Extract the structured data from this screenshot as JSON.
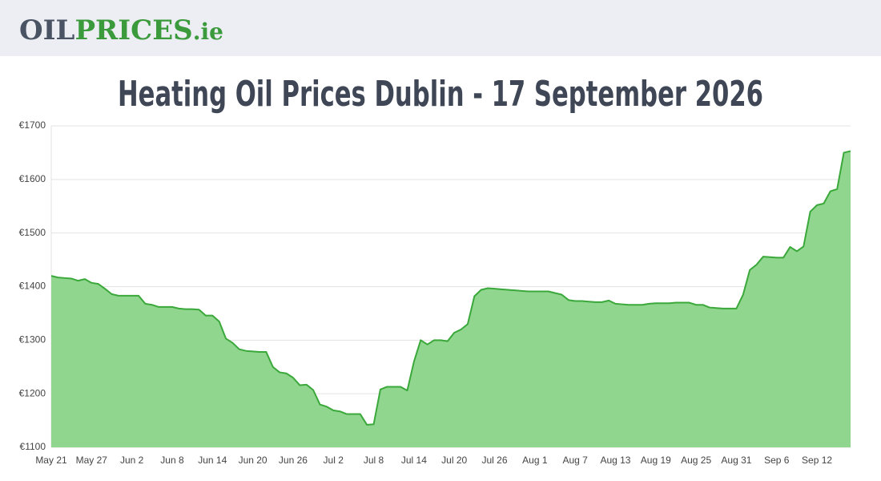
{
  "header": {
    "logo": [
      "OIL",
      "PRICES",
      ".ie"
    ]
  },
  "chart_data": {
    "type": "area",
    "title": "Heating Oil Prices Dublin - 17 September 2026",
    "color": "#3aa83a",
    "fill": "#90d68e",
    "grid": true,
    "categories": [
      "May 21",
      null,
      null,
      null,
      null,
      null,
      "May 27",
      null,
      null,
      null,
      null,
      null,
      "Jun 2",
      null,
      null,
      null,
      null,
      null,
      "Jun 8",
      null,
      null,
      null,
      null,
      null,
      "Jun 14",
      null,
      null,
      null,
      null,
      null,
      "Jun 20",
      null,
      null,
      null,
      null,
      null,
      "Jun 26",
      null,
      null,
      null,
      null,
      null,
      "Jul 2",
      null,
      null,
      null,
      null,
      null,
      "Jul 8",
      null,
      null,
      null,
      null,
      null,
      "Jul 14",
      null,
      null,
      null,
      null,
      null,
      "Jul 20",
      null,
      null,
      null,
      null,
      null,
      "Jul 26",
      null,
      null,
      null,
      null,
      null,
      "Aug 1",
      null,
      null,
      null,
      null,
      null,
      "Aug 7",
      null,
      null,
      null,
      null,
      null,
      "Aug 13",
      null,
      null,
      null,
      null,
      null,
      "Aug 19",
      null,
      null,
      null,
      null,
      null,
      "Aug 25",
      null,
      null,
      null,
      null,
      null,
      "Aug 31",
      null,
      null,
      null,
      null,
      null,
      "Sep 6",
      null,
      null,
      null,
      null,
      null,
      "Sep 12",
      null,
      null,
      null,
      null,
      null
    ],
    "values": [
      1420,
      1417,
      1416,
      1415,
      1411,
      1414,
      1407,
      1405,
      1396,
      1386,
      1383,
      1383,
      1383,
      1383,
      1368,
      1366,
      1362,
      1362,
      1362,
      1359,
      1358,
      1358,
      1357,
      1346,
      1346,
      1335,
      1303,
      1295,
      1283,
      1280,
      1279,
      1278,
      1278,
      1250,
      1240,
      1238,
      1230,
      1216,
      1217,
      1207,
      1180,
      1176,
      1169,
      1167,
      1162,
      1162,
      1162,
      1142,
      1143,
      1208,
      1213,
      1213,
      1213,
      1206,
      1260,
      1300,
      1292,
      1300,
      1300,
      1298,
      1314,
      1320,
      1330,
      1382,
      1394,
      1397,
      1396,
      1395,
      1394,
      1393,
      1392,
      1391,
      1391,
      1391,
      1391,
      1388,
      1385,
      1375,
      1373,
      1373,
      1372,
      1371,
      1371,
      1374,
      1368,
      1367,
      1366,
      1366,
      1366,
      1368,
      1369,
      1369,
      1369,
      1370,
      1370,
      1370,
      1366,
      1366,
      1361,
      1360,
      1359,
      1359,
      1359,
      1385,
      1431,
      1441,
      1456,
      1455,
      1454,
      1454,
      1474,
      1466,
      1475,
      1540,
      1552,
      1555,
      1578,
      1582,
      1650,
      1653
    ],
    "ylim": [
      1100,
      1700
    ],
    "yticks": [
      {
        "value": 1100,
        "label": "€1100"
      },
      {
        "value": 1200,
        "label": "€1200"
      },
      {
        "value": 1300,
        "label": "€1300"
      },
      {
        "value": 1400,
        "label": "€1400"
      },
      {
        "value": 1500,
        "label": "€1500"
      },
      {
        "value": 1600,
        "label": "€1600"
      },
      {
        "value": 1700,
        "label": "€1700"
      }
    ]
  }
}
